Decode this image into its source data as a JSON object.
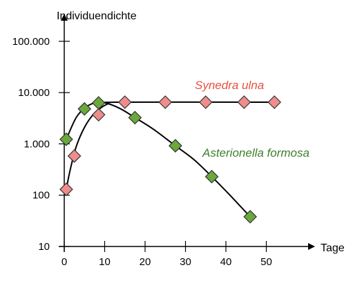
{
  "chart_data": {
    "type": "scatter",
    "ylabel": "Individuendichte",
    "xlabel": "Tage",
    "xlim": [
      0,
      52
    ],
    "ylim": [
      10,
      100000
    ],
    "yscale": "log",
    "xticks": [
      0,
      10,
      20,
      30,
      40,
      50
    ],
    "xtick_labels": [
      "0",
      "10",
      "20",
      "30",
      "40",
      "50"
    ],
    "yticks": [
      10,
      100,
      1000,
      10000,
      100000
    ],
    "ytick_labels": [
      "10",
      "100",
      "1.000",
      "10.000",
      "100.000"
    ],
    "grid": false,
    "legend": "none",
    "series": [
      {
        "name": "Synedra ulna",
        "color": "#f08c8c",
        "label_color": "#e8503c",
        "marker": "diamond",
        "points": [
          {
            "x": 0.5,
            "y": 130
          },
          {
            "x": 2.5,
            "y": 580
          },
          {
            "x": 8.5,
            "y": 3700
          },
          {
            "x": 15,
            "y": 6500
          },
          {
            "x": 25,
            "y": 6500
          },
          {
            "x": 35,
            "y": 6500
          },
          {
            "x": 44.5,
            "y": 6500
          },
          {
            "x": 52,
            "y": 6500
          }
        ],
        "curve": [
          {
            "x": 0.5,
            "y": 130
          },
          {
            "x": 1.5,
            "y": 320
          },
          {
            "x": 3,
            "y": 900
          },
          {
            "x": 5,
            "y": 2100
          },
          {
            "x": 7,
            "y": 3600
          },
          {
            "x": 9,
            "y": 5000
          },
          {
            "x": 11,
            "y": 6100
          },
          {
            "x": 13,
            "y": 6500
          },
          {
            "x": 52,
            "y": 6500
          }
        ]
      },
      {
        "name": "Asterionella formosa",
        "color": "#6aa83c",
        "label_color": "#3f7f2a",
        "marker": "diamond",
        "points": [
          {
            "x": 0.5,
            "y": 1230
          },
          {
            "x": 5,
            "y": 4800
          },
          {
            "x": 8.5,
            "y": 6300
          },
          {
            "x": 17.5,
            "y": 3250
          },
          {
            "x": 27.5,
            "y": 920
          },
          {
            "x": 36.5,
            "y": 230
          },
          {
            "x": 46,
            "y": 38
          }
        ],
        "curve": [
          {
            "x": 0.5,
            "y": 1230
          },
          {
            "x": 3,
            "y": 3300
          },
          {
            "x": 5.5,
            "y": 5300
          },
          {
            "x": 8,
            "y": 6400
          },
          {
            "x": 10.5,
            "y": 6200
          },
          {
            "x": 14,
            "y": 4800
          },
          {
            "x": 17.5,
            "y": 3250
          },
          {
            "x": 22,
            "y": 1950
          },
          {
            "x": 27.5,
            "y": 920
          },
          {
            "x": 32,
            "y": 500
          },
          {
            "x": 36.5,
            "y": 230
          },
          {
            "x": 41,
            "y": 100
          },
          {
            "x": 46,
            "y": 38
          }
        ]
      }
    ]
  }
}
